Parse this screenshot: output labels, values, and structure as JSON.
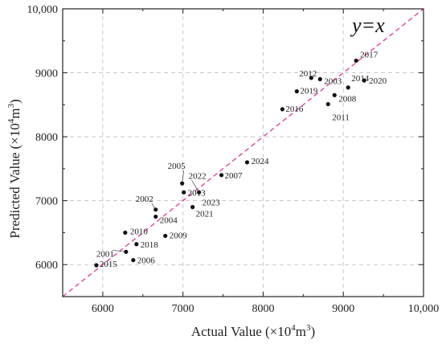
{
  "chart_data": {
    "type": "scatter",
    "xlabel_main": "Actual Value (×10",
    "xlabel_sup": "4",
    "xlabel_end": "m",
    "xlabel_sup2": "3",
    "xlabel_close": ")",
    "ylabel_main": "Predicted Value (×10",
    "ylabel_sup": "4",
    "ylabel_end": "m",
    "ylabel_sup2": "3",
    "ylabel_close": ")",
    "xlim": [
      5500,
      10000
    ],
    "ylim": [
      5500,
      10000
    ],
    "xticks": [
      6000,
      7000,
      8000,
      9000,
      10000
    ],
    "yticks": [
      6000,
      7000,
      8000,
      9000,
      10000
    ],
    "xtick_labels": [
      "6000",
      "7000",
      "8000",
      "9000",
      "10,000"
    ],
    "ytick_labels": [
      "6000",
      "7000",
      "8000",
      "9000",
      "10,000"
    ],
    "grid": true,
    "reference_line": {
      "label": "y=x",
      "color": "#e0399a"
    },
    "points": [
      {
        "year": "2001",
        "x": 6290,
        "y": 6200
      },
      {
        "year": "2002",
        "x": 6660,
        "y": 6860
      },
      {
        "year": "2003",
        "x": 8710,
        "y": 8900
      },
      {
        "year": "2004",
        "x": 6660,
        "y": 6750
      },
      {
        "year": "2005",
        "x": 6990,
        "y": 7270
      },
      {
        "year": "2006",
        "x": 6380,
        "y": 6070
      },
      {
        "year": "2007",
        "x": 7480,
        "y": 7400
      },
      {
        "year": "2008",
        "x": 8890,
        "y": 8650
      },
      {
        "year": "2009",
        "x": 6780,
        "y": 6450
      },
      {
        "year": "2010",
        "x": 6280,
        "y": 6500
      },
      {
        "year": "2011",
        "x": 8810,
        "y": 8510
      },
      {
        "year": "2012",
        "x": 8600,
        "y": 8920
      },
      {
        "year": "2013",
        "x": 7010,
        "y": 7130
      },
      {
        "year": "2014",
        "x": 9060,
        "y": 8770
      },
      {
        "year": "2015",
        "x": 5920,
        "y": 5990
      },
      {
        "year": "2016",
        "x": 8240,
        "y": 8430
      },
      {
        "year": "2017",
        "x": 9160,
        "y": 9190
      },
      {
        "year": "2018",
        "x": 6420,
        "y": 6320
      },
      {
        "year": "2019",
        "x": 8420,
        "y": 8710
      },
      {
        "year": "2020",
        "x": 9260,
        "y": 8880
      },
      {
        "year": "2021",
        "x": 7120,
        "y": 6900
      },
      {
        "year": "2022",
        "x": 7200,
        "y": 7130
      },
      {
        "year": "2023",
        "x": 7200,
        "y": 7130
      },
      {
        "year": "2024",
        "x": 7800,
        "y": 7600
      }
    ]
  }
}
